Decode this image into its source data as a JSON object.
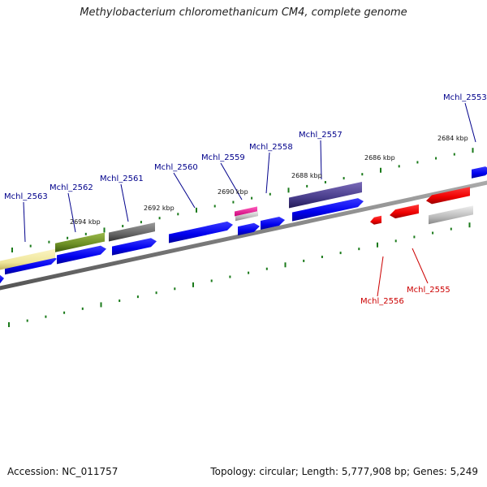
{
  "title": "Methylobacterium chloromethanicum CM4, complete genome",
  "footer": {
    "accession": "Accession: NC_011757",
    "summary": "Topology: circular; Length: 5,777,908 bp; Genes: 5,249"
  },
  "colors": {
    "backbone": "#7a7a7a",
    "tick": "#1a7a1a",
    "forward_cds": "#0000ee",
    "reverse_cds": "#ee0000",
    "label_forward": "#00008b",
    "label_reverse": "#cc0000"
  },
  "scale_labels": [
    "2684 kbp",
    "2686 kbp",
    "2688 kbp",
    "2690 kbp",
    "2692 kbp",
    "2694 kbp"
  ],
  "gene_labels": {
    "forward": [
      "Mchl_2553",
      "Mchl_2557",
      "Mchl_2558",
      "Mchl_2559",
      "Mchl_2560",
      "Mchl_2561",
      "Mchl_2562",
      "Mchl_2563"
    ],
    "reverse": [
      "Mchl_2555",
      "Mchl_2556"
    ]
  }
}
